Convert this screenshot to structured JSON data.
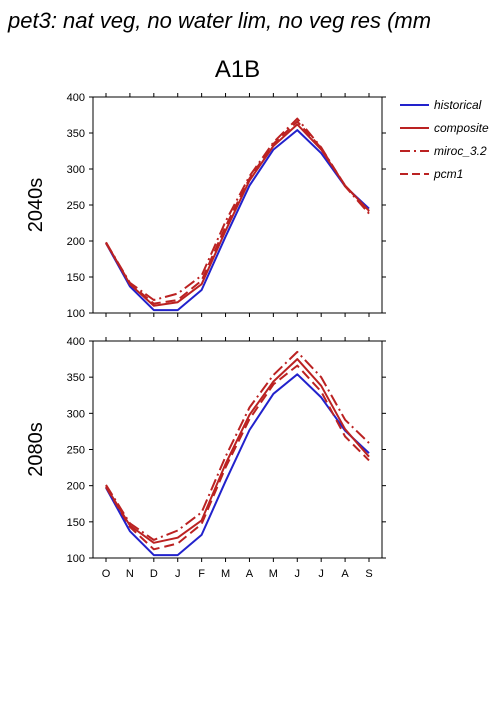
{
  "title": "pet3: nat veg, no water lim, no veg res (mm",
  "chart_data": [
    {
      "type": "line",
      "title": "A1B",
      "panel_label": "2040s",
      "categories": [
        "O",
        "N",
        "D",
        "J",
        "F",
        "M",
        "A",
        "M",
        "J",
        "J",
        "A",
        "S"
      ],
      "ylim": [
        100,
        400
      ],
      "yticks": [
        100,
        150,
        200,
        250,
        300,
        350,
        400
      ],
      "grid": false,
      "legend": "right",
      "series": [
        {
          "name": "historical",
          "color": "#2222cc",
          "dash": "solid",
          "values": [
            197,
            137,
            104,
            104,
            132,
            206,
            277,
            327,
            354,
            322,
            276,
            245
          ]
        },
        {
          "name": "composite",
          "color": "#bb2222",
          "dash": "solid",
          "values": [
            198,
            140,
            110,
            115,
            140,
            214,
            284,
            332,
            362,
            327,
            277,
            242
          ]
        },
        {
          "name": "miroc_3.2",
          "color": "#bb2222",
          "dash": "dashdot",
          "values": [
            198,
            142,
            118,
            127,
            152,
            227,
            290,
            337,
            370,
            330,
            276,
            238
          ]
        },
        {
          "name": "pcm1",
          "color": "#bb2222",
          "dash": "dashed",
          "values": [
            197,
            141,
            113,
            118,
            145,
            220,
            287,
            335,
            366,
            329,
            277,
            241
          ]
        }
      ]
    },
    {
      "type": "line",
      "panel_label": "2080s",
      "categories": [
        "O",
        "N",
        "D",
        "J",
        "F",
        "M",
        "A",
        "M",
        "J",
        "J",
        "A",
        "S"
      ],
      "ylim": [
        100,
        400
      ],
      "yticks": [
        100,
        150,
        200,
        250,
        300,
        350,
        400
      ],
      "grid": false,
      "series": [
        {
          "name": "historical",
          "color": "#2222cc",
          "dash": "solid",
          "values": [
            197,
            137,
            104,
            104,
            132,
            206,
            277,
            327,
            354,
            322,
            276,
            245
          ]
        },
        {
          "name": "composite",
          "color": "#bb2222",
          "dash": "solid",
          "values": [
            199,
            145,
            121,
            128,
            152,
            230,
            298,
            344,
            375,
            338,
            278,
            240
          ]
        },
        {
          "name": "miroc_3.2",
          "color": "#bb2222",
          "dash": "dashdot",
          "values": [
            201,
            148,
            125,
            138,
            163,
            240,
            308,
            353,
            385,
            350,
            291,
            259
          ]
        },
        {
          "name": "pcm1",
          "color": "#bb2222",
          "dash": "dashed",
          "values": [
            198,
            143,
            112,
            120,
            147,
            225,
            292,
            340,
            366,
            330,
            268,
            235
          ]
        }
      ]
    }
  ]
}
